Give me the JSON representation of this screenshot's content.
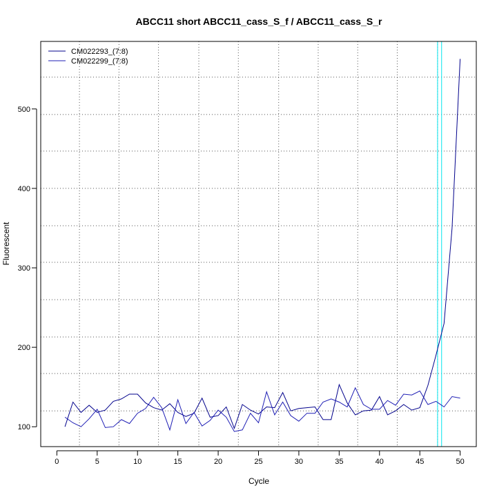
{
  "chart_data": {
    "type": "line",
    "title": "ABCC11 short ABCC11_cass_S_f / ABCC11_cass_S_r",
    "xlabel": "Cycle",
    "ylabel": "Fluorescent",
    "xlim": [
      -2,
      52
    ],
    "ylim": [
      75,
      585
    ],
    "xticks": [
      0,
      5,
      10,
      15,
      20,
      25,
      30,
      35,
      40,
      45,
      50
    ],
    "yticks": [
      100,
      200,
      300,
      400,
      500
    ],
    "grid": true,
    "grid_x": [
      2.8,
      7.7,
      12.6,
      17.6,
      22.5,
      27.5,
      32.4,
      37.3,
      42.2,
      47.2
    ],
    "grid_y": [
      120,
      167,
      213,
      260,
      307,
      353,
      400,
      447,
      493,
      540
    ],
    "threshold_lines_x": [
      47.2,
      47.7
    ],
    "threshold_color": "#00e5ee",
    "legend_position": "top-left",
    "x": [
      1,
      2,
      3,
      4,
      5,
      6,
      7,
      8,
      9,
      10,
      11,
      12,
      13,
      14,
      15,
      16,
      17,
      18,
      19,
      20,
      21,
      22,
      23,
      24,
      25,
      26,
      27,
      28,
      29,
      30,
      31,
      32,
      33,
      34,
      35,
      36,
      37,
      38,
      39,
      40,
      41,
      42,
      43,
      44,
      45,
      46,
      47,
      48,
      49,
      50
    ],
    "series": [
      {
        "name": "CM022293_(7:8)",
        "color": "#00008b",
        "values": [
          100,
          131,
          118,
          127,
          118,
          121,
          132,
          135,
          141,
          141,
          130,
          124,
          121,
          129,
          118,
          113,
          117,
          136,
          112,
          114,
          125,
          98,
          128,
          121,
          116,
          125,
          124,
          143,
          120,
          123,
          124,
          125,
          109,
          109,
          153,
          130,
          115,
          120,
          121,
          138,
          115,
          120,
          128,
          121,
          124,
          152,
          190,
          230,
          350,
          563
        ]
      },
      {
        "name": "CM022299_(7:8)",
        "color": "#1c1cb4",
        "values": [
          112,
          105,
          100,
          110,
          122,
          99,
          100,
          109,
          104,
          117,
          123,
          137,
          124,
          96,
          134,
          104,
          118,
          101,
          108,
          121,
          112,
          94,
          96,
          117,
          105,
          144,
          115,
          131,
          114,
          107,
          117,
          117,
          131,
          135,
          131,
          125,
          149,
          128,
          122,
          122,
          133,
          127,
          141,
          140,
          145,
          128,
          132,
          125,
          138,
          136
        ]
      }
    ]
  }
}
